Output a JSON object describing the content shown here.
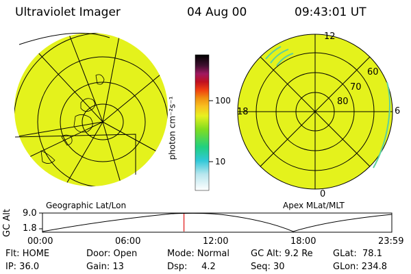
{
  "header": {
    "title": "Ultraviolet Imager",
    "date": "04 Aug 00",
    "time": "09:43:01 UT"
  },
  "panels": {
    "left_label": "Geographic Lat/Lon",
    "right_label": "Apex MLat/MLT"
  },
  "colorbar": {
    "unit_label": "photon cm⁻²s⁻¹",
    "tick_100": "100",
    "tick_10": "10"
  },
  "polar_plot": {
    "mlt_12": "12",
    "mlt_18": "18",
    "mlt_6": "6",
    "mlt_0": "0",
    "lat_60": "60",
    "lat_70": "70",
    "lat_80": "80"
  },
  "timeline": {
    "ylabel": "GC Alt",
    "y_hi": "9.0",
    "y_lo": "1.8",
    "times": [
      "00:00",
      "06:00",
      "12:00",
      "18:00",
      "23:59"
    ],
    "current_time_hours": 9.72
  },
  "status": {
    "row1": [
      "Flt: HOME",
      "Door: Open",
      "Mode: Normal",
      "GC Alt: 9.2 Re",
      "GLat:  78.1"
    ],
    "row2": [
      "IP: 36.0",
      "Gain: 13",
      "Dsp:     4.2",
      "Seq: 30",
      "GLon: 234.8"
    ]
  },
  "colors": {
    "image_fill": "#e4f21c",
    "edge": "#5ad0a0",
    "marker": "#e01010"
  }
}
